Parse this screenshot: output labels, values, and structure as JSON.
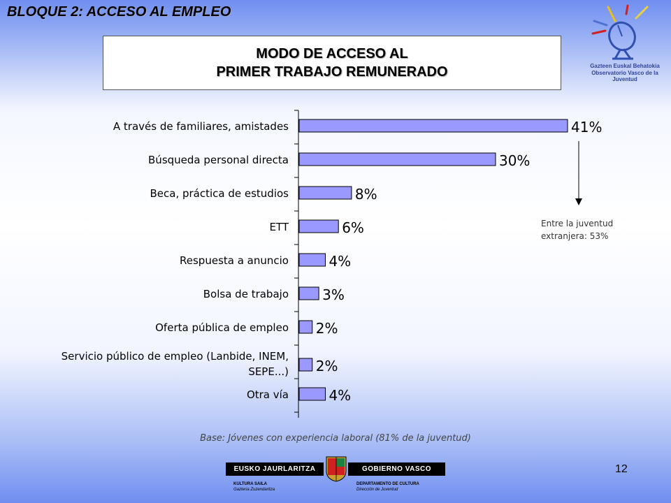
{
  "header": {
    "section_title": "BLOQUE 2: ACCESO AL EMPLEO",
    "title_line1": "MODO DE ACCESO AL",
    "title_line2": "PRIMER TRABAJO REMUNERADO"
  },
  "logo": {
    "name_line1": "Gazteen Euskal Behatokia",
    "name_line2": "Observatorio Vasco de la Juventud"
  },
  "chart_data": {
    "type": "bar",
    "orientation": "horizontal",
    "categories": [
      "A través de familiares, amistades",
      "Búsqueda personal directa",
      "Beca, práctica de estudios",
      "ETT",
      "Respuesta a anuncio",
      "Bolsa de trabajo",
      "Oferta pública de empleo",
      "Servicio público de empleo (Lanbide, INEM, SEPE...)",
      "Otra vía"
    ],
    "category_lines": [
      [
        "A través de familiares, amistades"
      ],
      [
        "Búsqueda personal directa"
      ],
      [
        "Beca, práctica de estudios"
      ],
      [
        "ETT"
      ],
      [
        "Respuesta a anuncio"
      ],
      [
        "Bolsa de trabajo"
      ],
      [
        "Oferta pública de empleo"
      ],
      [
        "Servicio público de empleo (Lanbide, INEM,",
        "SEPE...)"
      ],
      [
        "Otra vía"
      ]
    ],
    "values": [
      41,
      30,
      8,
      6,
      4,
      3,
      2,
      2,
      4
    ],
    "value_labels": [
      "41%",
      "30%",
      "8%",
      "6%",
      "4%",
      "3%",
      "2%",
      "2%",
      "4%"
    ],
    "bar_color": "#9999ff",
    "xlim": [
      0,
      41
    ],
    "grid": false
  },
  "annotation": {
    "line1": "Entre la juventud",
    "line2": "extranjera: 53%"
  },
  "footer": {
    "base_note": "Base: Jóvenes con experiencia laboral (81% de la juventud)",
    "page_number": "12",
    "gov_left": "EUSKO JAURLARITZA",
    "gov_right": "GOBIERNO VASCO",
    "dept_left_1": "KULTURA SAILA",
    "dept_left_2": "Gazteria Zuzendaritza",
    "dept_right_1": "DEPARTAMENTO DE CULTURA",
    "dept_right_2": "Dirección de Juventud"
  }
}
